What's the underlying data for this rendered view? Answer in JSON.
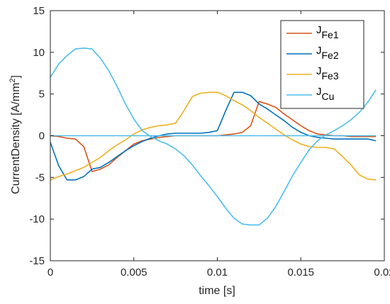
{
  "chart_data": {
    "type": "line",
    "title": "",
    "xlabel": "time [s]",
    "ylabel_main": "CurrentDensity [A/mm",
    "ylabel_sup": "2",
    "ylabel_end": "]",
    "xlim": [
      0,
      0.02
    ],
    "ylim": [
      -15,
      15
    ],
    "xticks": [
      0,
      0.005,
      0.01,
      0.015,
      0.02
    ],
    "xtick_labels": [
      "0",
      "0.005",
      "0.01",
      "0.015",
      "0.02"
    ],
    "yticks": [
      -15,
      -10,
      -5,
      0,
      5,
      10,
      15
    ],
    "ytick_labels": [
      "-15",
      "-10",
      "-5",
      "0",
      "5",
      "10",
      "15"
    ],
    "grid": false,
    "legend_position": "top-right",
    "series": [
      {
        "name": "Fe1",
        "legend_main": "J",
        "legend_sub": "Fe1",
        "color": "#D95319",
        "x": [
          0,
          0.0005,
          0.001,
          0.0015,
          0.002,
          0.0025,
          0.003,
          0.0035,
          0.004,
          0.0045,
          0.005,
          0.0055,
          0.006,
          0.0065,
          0.007,
          0.0075,
          0.008,
          0.0085,
          0.009,
          0.0095,
          0.01,
          0.0105,
          0.011,
          0.0115,
          0.012,
          0.0125,
          0.013,
          0.0135,
          0.014,
          0.0145,
          0.015,
          0.0155,
          0.016,
          0.0165,
          0.017,
          0.0175,
          0.018,
          0.0185,
          0.019,
          0.0195
        ],
        "y": [
          0,
          -0.1,
          -0.3,
          -0.4,
          -1.3,
          -4.3,
          -4.0,
          -3.5,
          -2.6,
          -1.8,
          -1.0,
          -0.6,
          -0.4,
          -0.2,
          -0.1,
          0,
          0,
          0,
          0,
          0,
          0,
          0.1,
          0.2,
          0.4,
          1.2,
          4.1,
          3.8,
          3.4,
          2.6,
          1.9,
          1.2,
          0.6,
          0.2,
          0.1,
          0,
          0,
          -0.1,
          -0.1,
          -0.1,
          -0.1
        ]
      },
      {
        "name": "Fe2",
        "legend_main": "J",
        "legend_sub": "Fe2",
        "color": "#0072BD",
        "x": [
          0,
          0.0005,
          0.001,
          0.0015,
          0.002,
          0.0025,
          0.003,
          0.0035,
          0.004,
          0.0045,
          0.005,
          0.0055,
          0.006,
          0.0065,
          0.007,
          0.0075,
          0.008,
          0.0085,
          0.009,
          0.0095,
          0.01,
          0.0105,
          0.011,
          0.0115,
          0.012,
          0.0125,
          0.013,
          0.0135,
          0.014,
          0.0145,
          0.015,
          0.0155,
          0.016,
          0.0165,
          0.017,
          0.0175,
          0.018,
          0.0185,
          0.019,
          0.0195
        ],
        "y": [
          -0.8,
          -3.6,
          -5.3,
          -5.3,
          -4.9,
          -4.0,
          -3.8,
          -3.2,
          -2.5,
          -1.8,
          -1.2,
          -0.7,
          -0.3,
          0,
          0.2,
          0.3,
          0.3,
          0.3,
          0.3,
          0.4,
          0.6,
          3.0,
          5.2,
          5.2,
          4.8,
          3.8,
          3.2,
          2.5,
          1.8,
          1.0,
          0.4,
          0,
          -0.2,
          -0.3,
          -0.4,
          -0.4,
          -0.4,
          -0.4,
          -0.4,
          -0.6
        ]
      },
      {
        "name": "Fe3",
        "legend_main": "J",
        "legend_sub": "Fe3",
        "color": "#EDB120",
        "x": [
          0,
          0.0005,
          0.001,
          0.0015,
          0.002,
          0.0025,
          0.003,
          0.0035,
          0.004,
          0.0045,
          0.005,
          0.0055,
          0.006,
          0.0065,
          0.007,
          0.0075,
          0.008,
          0.0085,
          0.009,
          0.0095,
          0.01,
          0.0105,
          0.011,
          0.0115,
          0.012,
          0.0125,
          0.013,
          0.0135,
          0.014,
          0.0145,
          0.015,
          0.0155,
          0.016,
          0.0165,
          0.017,
          0.0175,
          0.018,
          0.0185,
          0.019,
          0.0195
        ],
        "y": [
          -5.3,
          -4.9,
          -4.6,
          -4.2,
          -3.8,
          -3.2,
          -2.6,
          -1.8,
          -1.1,
          -0.5,
          0.2,
          0.7,
          1.0,
          1.2,
          1.3,
          1.5,
          3.0,
          4.7,
          5.1,
          5.2,
          5.2,
          4.8,
          4.2,
          3.7,
          3.0,
          2.2,
          1.5,
          0.8,
          0.1,
          -0.5,
          -1.0,
          -1.3,
          -1.4,
          -1.4,
          -1.6,
          -2.5,
          -3.5,
          -4.7,
          -5.2,
          -5.3
        ]
      },
      {
        "name": "Cu",
        "legend_main": "J",
        "legend_sub": "Cu",
        "color": "#4DBEEE",
        "x": [
          0,
          0.0005,
          0.001,
          0.0015,
          0.002,
          0.0025,
          0.003,
          0.0035,
          0.004,
          0.0045,
          0.005,
          0.0055,
          0.006,
          0.0065,
          0.007,
          0.0075,
          0.008,
          0.0085,
          0.009,
          0.0095,
          0.01,
          0.0105,
          0.011,
          0.0115,
          0.012,
          0.0125,
          0.013,
          0.0135,
          0.014,
          0.0145,
          0.015,
          0.0155,
          0.016,
          0.0165,
          0.017,
          0.0175,
          0.018,
          0.0185,
          0.019,
          0.0195
        ],
        "y": [
          7.0,
          8.6,
          9.6,
          10.4,
          10.5,
          10.4,
          9.3,
          7.8,
          5.9,
          3.8,
          2.0,
          0.6,
          -0.1,
          -0.6,
          -1.0,
          -1.6,
          -2.4,
          -3.5,
          -4.8,
          -6.0,
          -7.3,
          -8.7,
          -9.9,
          -10.6,
          -10.7,
          -10.7,
          -9.9,
          -8.5,
          -6.7,
          -4.8,
          -3.2,
          -1.7,
          -0.6,
          0.1,
          0.6,
          1.2,
          1.9,
          2.8,
          4.0,
          5.5
        ]
      },
      {
        "name": "zero-line",
        "color": "#4DBEEE",
        "x": [
          0,
          0.0195
        ],
        "y": [
          0,
          0
        ]
      }
    ]
  }
}
